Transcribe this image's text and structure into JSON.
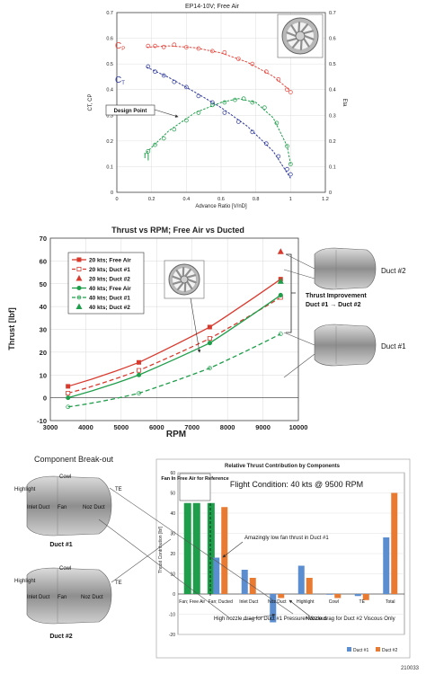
{
  "figure_id": "210033",
  "chart_data": [
    {
      "type": "line",
      "title": "EP14-10V; Free Air",
      "xlabel": "Advance Ratio [V/nD]",
      "ylabel_left": "CT, CP",
      "ylabel_right": "Eta",
      "xlim": [
        0,
        1.2
      ],
      "ylim_left": [
        0,
        0.7
      ],
      "ylim_right": [
        0,
        0.7
      ],
      "x_ticks": [
        "0",
        "0.2",
        "0.4",
        "0.6",
        "0.8",
        "1",
        "1.2"
      ],
      "y_ticks_left": [
        "0",
        "0.1",
        "0.2",
        "0.3",
        "0.4",
        "0.5",
        "0.6",
        "0.7"
      ],
      "y_ticks_right": [
        "0",
        "0.1",
        "0.2",
        "0.3",
        "0.4",
        "0.5",
        "0.6",
        "0.7"
      ],
      "grid": true,
      "series": [
        {
          "name": "Cp",
          "label_main": "C",
          "label_sub": "P",
          "color": "#e8453c",
          "marker": "circle-open",
          "x": [
            0.18,
            0.22,
            0.27,
            0.33,
            0.4,
            0.47,
            0.55,
            0.62,
            0.7,
            0.78,
            0.86,
            0.93,
            0.98,
            1.0
          ],
          "y": [
            0.57,
            0.57,
            0.566,
            0.575,
            0.565,
            0.56,
            0.55,
            0.545,
            0.52,
            0.5,
            0.47,
            0.44,
            0.4,
            0.39
          ],
          "fit": [
            [
              0.17,
              0.565
            ],
            [
              0.3,
              0.57
            ],
            [
              0.45,
              0.563
            ],
            [
              0.6,
              0.543
            ],
            [
              0.75,
              0.507
            ],
            [
              0.9,
              0.452
            ],
            [
              1.0,
              0.395
            ]
          ]
        },
        {
          "name": "CT",
          "label_main": "C",
          "label_sub": "T",
          "color": "#2e3a9c",
          "marker": "circle-open",
          "x": [
            0.18,
            0.22,
            0.27,
            0.33,
            0.4,
            0.47,
            0.55,
            0.62,
            0.7,
            0.78,
            0.86,
            0.93,
            0.98,
            1.0
          ],
          "y": [
            0.49,
            0.47,
            0.455,
            0.43,
            0.41,
            0.375,
            0.35,
            0.31,
            0.275,
            0.235,
            0.19,
            0.14,
            0.09,
            0.07
          ],
          "fit": [
            [
              0.17,
              0.488
            ],
            [
              0.3,
              0.447
            ],
            [
              0.45,
              0.39
            ],
            [
              0.6,
              0.33
            ],
            [
              0.75,
              0.258
            ],
            [
              0.9,
              0.16
            ],
            [
              1.0,
              0.055
            ]
          ]
        },
        {
          "name": "η",
          "label_main": "η",
          "color": "#1e9e4a",
          "marker": "circle-open",
          "x": [
            0.18,
            0.22,
            0.27,
            0.33,
            0.4,
            0.47,
            0.55,
            0.62,
            0.68,
            0.73,
            0.78,
            0.85,
            0.92,
            0.98,
            1.0
          ],
          "y": [
            0.16,
            0.185,
            0.21,
            0.245,
            0.28,
            0.31,
            0.34,
            0.35,
            0.36,
            0.365,
            0.35,
            0.33,
            0.27,
            0.18,
            0.11
          ],
          "fit": [
            [
              0.17,
              0.155
            ],
            [
              0.3,
              0.24
            ],
            [
              0.45,
              0.31
            ],
            [
              0.6,
              0.35
            ],
            [
              0.7,
              0.365
            ],
            [
              0.8,
              0.35
            ],
            [
              0.9,
              0.29
            ],
            [
              0.98,
              0.18
            ],
            [
              1.0,
              0.11
            ]
          ]
        }
      ],
      "annotations": [
        "Design Point"
      ]
    },
    {
      "type": "line",
      "title": "Thrust vs RPM; Free Air vs Ducted",
      "xlabel": "RPM",
      "ylabel": "Thrust [lbf]",
      "xlim": [
        3000,
        10000
      ],
      "ylim": [
        -10,
        70
      ],
      "x_ticks": [
        "3000",
        "4000",
        "5000",
        "6000",
        "7000",
        "8000",
        "9000",
        "10000"
      ],
      "y_ticks": [
        "-10",
        "0",
        "10",
        "20",
        "30",
        "40",
        "50",
        "60",
        "70"
      ],
      "grid": true,
      "legend_position": "top-left",
      "series": [
        {
          "name": "20 kts; Free Air",
          "color": "#d93a2e",
          "style": "solid",
          "marker": "square",
          "x": [
            3500,
            5500,
            7500,
            9500
          ],
          "y": [
            5,
            15.5,
            31,
            52
          ]
        },
        {
          "name": "20 kts; Duct #1",
          "color": "#d93a2e",
          "style": "dashed",
          "marker": "square-open",
          "x": [
            3500,
            5500,
            7500,
            9500
          ],
          "y": [
            2,
            12,
            26,
            44
          ]
        },
        {
          "name": "20 kts; Duct #2",
          "color": "#d93a2e",
          "style": "none",
          "marker": "triangle",
          "x": [
            9500
          ],
          "y": [
            64
          ]
        },
        {
          "name": "40 kts; Free Air",
          "color": "#1e9e4a",
          "style": "solid",
          "marker": "circle",
          "x": [
            3500,
            5500,
            7500,
            9500
          ],
          "y": [
            0,
            10,
            24,
            45
          ]
        },
        {
          "name": "40 kts; Duct #1",
          "color": "#1e9e4a",
          "style": "dashed",
          "marker": "circle-open",
          "x": [
            3500,
            5500,
            7500,
            9500
          ],
          "y": [
            -4,
            2,
            13,
            28
          ]
        },
        {
          "name": "40 kts; Duct #2",
          "color": "#1e9e4a",
          "style": "none",
          "marker": "triangle",
          "x": [
            9500
          ],
          "y": [
            51
          ]
        }
      ],
      "annotations": [
        "Thrust Improvement",
        "Duct #1 → Duct #2",
        "Duct #2",
        "Duct #1"
      ]
    },
    {
      "type": "bar",
      "title": "Relative Thrust Contribution by Components",
      "subtitle": "Flight Condition: 40 kts @ 9500 RPM",
      "ylabel": "Thrust Contribution [lbf]",
      "ylim": [
        -20,
        60
      ],
      "y_ticks": [
        "-20",
        "-10",
        "0",
        "10",
        "20",
        "30",
        "40",
        "50",
        "60"
      ],
      "grid": true,
      "legend_position": "bottom-right",
      "categories": [
        "Fan; Free Air",
        "Fan; Ducted",
        "Inlet Duct",
        "Noz Duct",
        "Highlight",
        "Cowl",
        "TE",
        "Total"
      ],
      "series": [
        {
          "name": "Duct #1",
          "color": "#5b8ed1",
          "values": [
            null,
            18,
            12,
            -14,
            14,
            0,
            -1,
            28
          ]
        },
        {
          "name": "Duct #2",
          "color": "#e87a32",
          "values": [
            null,
            43,
            8,
            -2,
            8,
            -2,
            -3,
            50
          ]
        },
        {
          "name": "Fan In Free Air for Reference",
          "color": "#1e9e4a",
          "values": [
            45,
            45,
            null,
            null,
            null,
            null,
            null,
            null
          ]
        }
      ],
      "annotations": [
        "Fan In Free Air for Reference",
        "Amazingly low fan thrust in Duct #1",
        "Nozzle drag for Duct #2 Viscous Only",
        "High nozzle drag for Duct #1 Pressure+Viscous"
      ]
    }
  ],
  "component_breakout": {
    "title": "Component Break-out",
    "duct1": {
      "caption": "Duct #1",
      "labels": [
        "Highlight",
        "Cowl",
        "TE",
        "Inlet Duct",
        "Fan",
        "Noz Duct"
      ]
    },
    "duct2": {
      "caption": "Duct #2",
      "labels": [
        "Highlight",
        "Cowl",
        "TE",
        "Inlet Duct",
        "Fan",
        "Noz Duct"
      ]
    }
  }
}
